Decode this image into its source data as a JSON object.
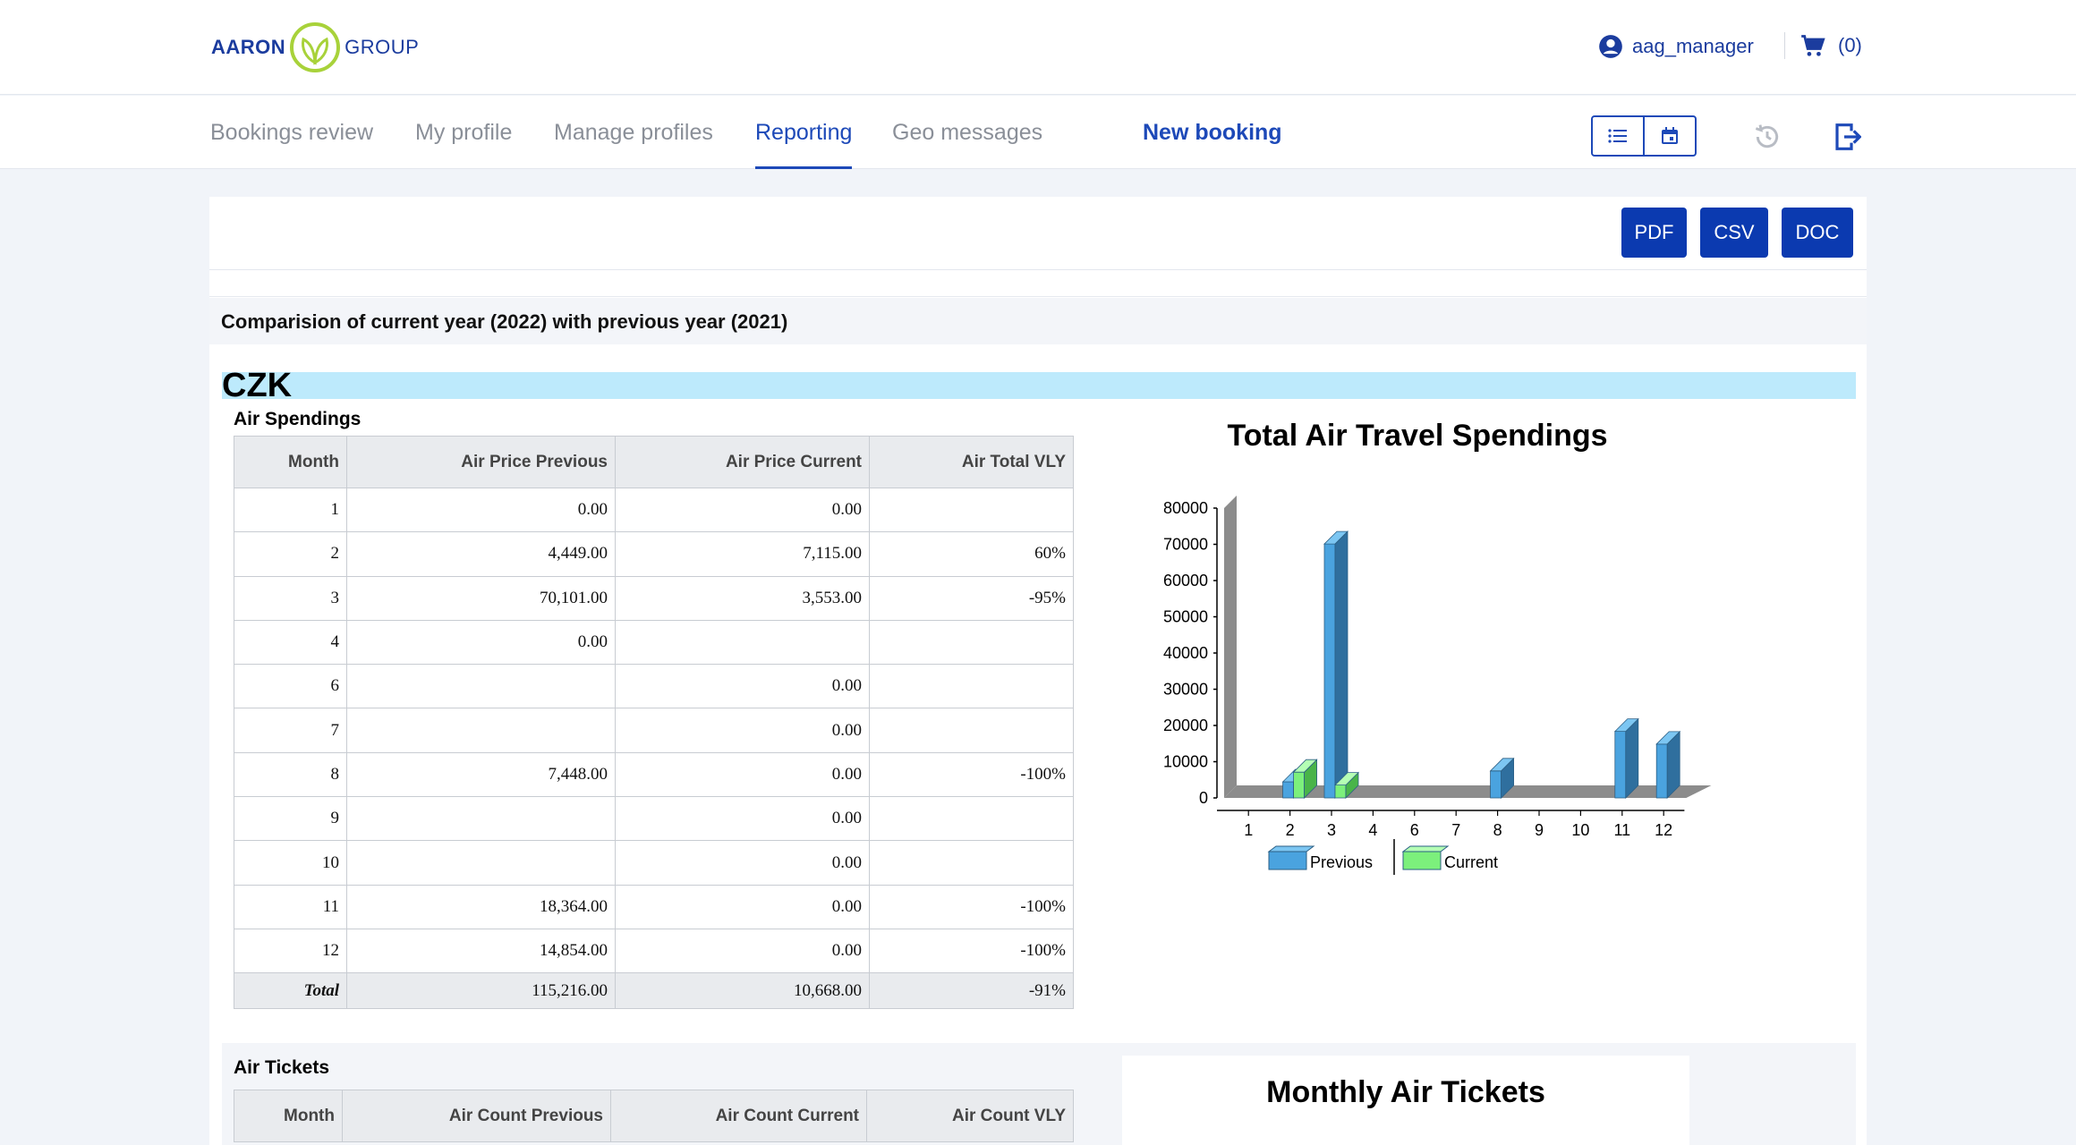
{
  "header": {
    "logo": {
      "word1": "AARON",
      "word2": "GROUP"
    },
    "username": "aag_manager",
    "cart_count": "(0)"
  },
  "nav": {
    "tabs": [
      {
        "label": "Bookings review"
      },
      {
        "label": "My profile"
      },
      {
        "label": "Manage profiles"
      },
      {
        "label": "Reporting"
      },
      {
        "label": "Geo messages"
      }
    ],
    "new_booking": "New booking"
  },
  "toolbar": {
    "pdf": "PDF",
    "csv": "CSV",
    "doc": "DOC"
  },
  "report": {
    "comparison_title": "Comparision of current year (2022) with previous year (2021)",
    "currency": "CZK",
    "air_spendings": {
      "title": "Air Spendings",
      "columns": [
        "Month",
        "Air Price Previous",
        "Air Price Current",
        "Air Total VLY"
      ],
      "rows": [
        [
          "1",
          "0.00",
          "0.00",
          ""
        ],
        [
          "2",
          "4,449.00",
          "7,115.00",
          "60%"
        ],
        [
          "3",
          "70,101.00",
          "3,553.00",
          "-95%"
        ],
        [
          "4",
          "0.00",
          "",
          ""
        ],
        [
          "6",
          "",
          "0.00",
          ""
        ],
        [
          "7",
          "",
          "0.00",
          ""
        ],
        [
          "8",
          "7,448.00",
          "0.00",
          "-100%"
        ],
        [
          "9",
          "",
          "0.00",
          ""
        ],
        [
          "10",
          "",
          "0.00",
          ""
        ],
        [
          "11",
          "18,364.00",
          "0.00",
          "-100%"
        ],
        [
          "12",
          "14,854.00",
          "0.00",
          "-100%"
        ]
      ],
      "total": [
        "Total",
        "115,216.00",
        "10,668.00",
        "-91%"
      ]
    },
    "air_tickets": {
      "title": "Air Tickets",
      "columns": [
        "Month",
        "Air Count Previous",
        "Air Count Current",
        "Air Count VLY"
      ]
    },
    "tickets_chart_title": "Monthly Air Tickets"
  },
  "chart_data": {
    "type": "bar",
    "title": "Total Air Travel Spendings",
    "categories": [
      "1",
      "2",
      "3",
      "4",
      "6",
      "7",
      "8",
      "9",
      "10",
      "11",
      "12"
    ],
    "series": [
      {
        "name": "Previous",
        "values": [
          0,
          4449,
          70101,
          0,
          0,
          0,
          7448,
          0,
          0,
          18364,
          14854
        ],
        "color": "#4aa3df"
      },
      {
        "name": "Current",
        "values": [
          0,
          7115,
          3553,
          0,
          0,
          0,
          0,
          0,
          0,
          0,
          0
        ],
        "color": "#7cf07c"
      }
    ],
    "yticks": [
      0,
      10000,
      20000,
      30000,
      40000,
      50000,
      60000,
      70000,
      80000
    ],
    "ylim": [
      0,
      80000
    ],
    "legend_position": "bottom"
  }
}
